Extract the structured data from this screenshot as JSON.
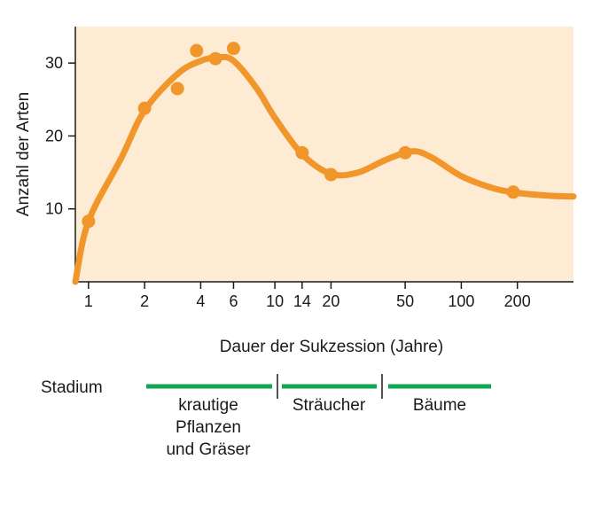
{
  "chart_data": {
    "type": "scatter",
    "xscale": "log",
    "xlim": [
      0.85,
      400
    ],
    "ylim": [
      0,
      35
    ],
    "xlabel": "Dauer der Sukzession (Jahre)",
    "ylabel": "Anzahl der Arten",
    "x_ticks": [
      1,
      2,
      4,
      6,
      10,
      14,
      20,
      50,
      100,
      200
    ],
    "y_ticks": [
      10,
      20,
      30
    ],
    "background_color": "#fdebd3",
    "series_color": "#f0962a",
    "points": [
      {
        "x": 1,
        "y": 8.3
      },
      {
        "x": 2,
        "y": 23.8
      },
      {
        "x": 3,
        "y": 26.5
      },
      {
        "x": 3.8,
        "y": 31.7
      },
      {
        "x": 4.8,
        "y": 30.6
      },
      {
        "x": 6,
        "y": 32
      },
      {
        "x": 14,
        "y": 17.7
      },
      {
        "x": 20,
        "y": 14.7
      },
      {
        "x": 50,
        "y": 17.7
      },
      {
        "x": 190,
        "y": 12.3
      }
    ],
    "fit_curve": [
      {
        "x": 0.85,
        "y": 0
      },
      {
        "x": 1,
        "y": 8.3
      },
      {
        "x": 1.5,
        "y": 17
      },
      {
        "x": 2,
        "y": 23.5
      },
      {
        "x": 3,
        "y": 28.5
      },
      {
        "x": 4,
        "y": 30.3
      },
      {
        "x": 5,
        "y": 30.8
      },
      {
        "x": 6,
        "y": 30.3
      },
      {
        "x": 8,
        "y": 26.5
      },
      {
        "x": 10,
        "y": 22.5
      },
      {
        "x": 14,
        "y": 17.5
      },
      {
        "x": 20,
        "y": 14.8
      },
      {
        "x": 28,
        "y": 15
      },
      {
        "x": 40,
        "y": 16.8
      },
      {
        "x": 55,
        "y": 17.9
      },
      {
        "x": 70,
        "y": 17
      },
      {
        "x": 100,
        "y": 14.5
      },
      {
        "x": 150,
        "y": 12.8
      },
      {
        "x": 200,
        "y": 12.2
      },
      {
        "x": 300,
        "y": 11.8
      },
      {
        "x": 400,
        "y": 11.7
      }
    ],
    "stages": {
      "label": "Stadium",
      "color": "#12a650",
      "items": [
        {
          "lines": [
            "krautige",
            "Pflanzen",
            "und Gräser"
          ]
        },
        {
          "lines": [
            "Sträucher"
          ]
        },
        {
          "lines": [
            "Bäume"
          ]
        }
      ]
    }
  }
}
